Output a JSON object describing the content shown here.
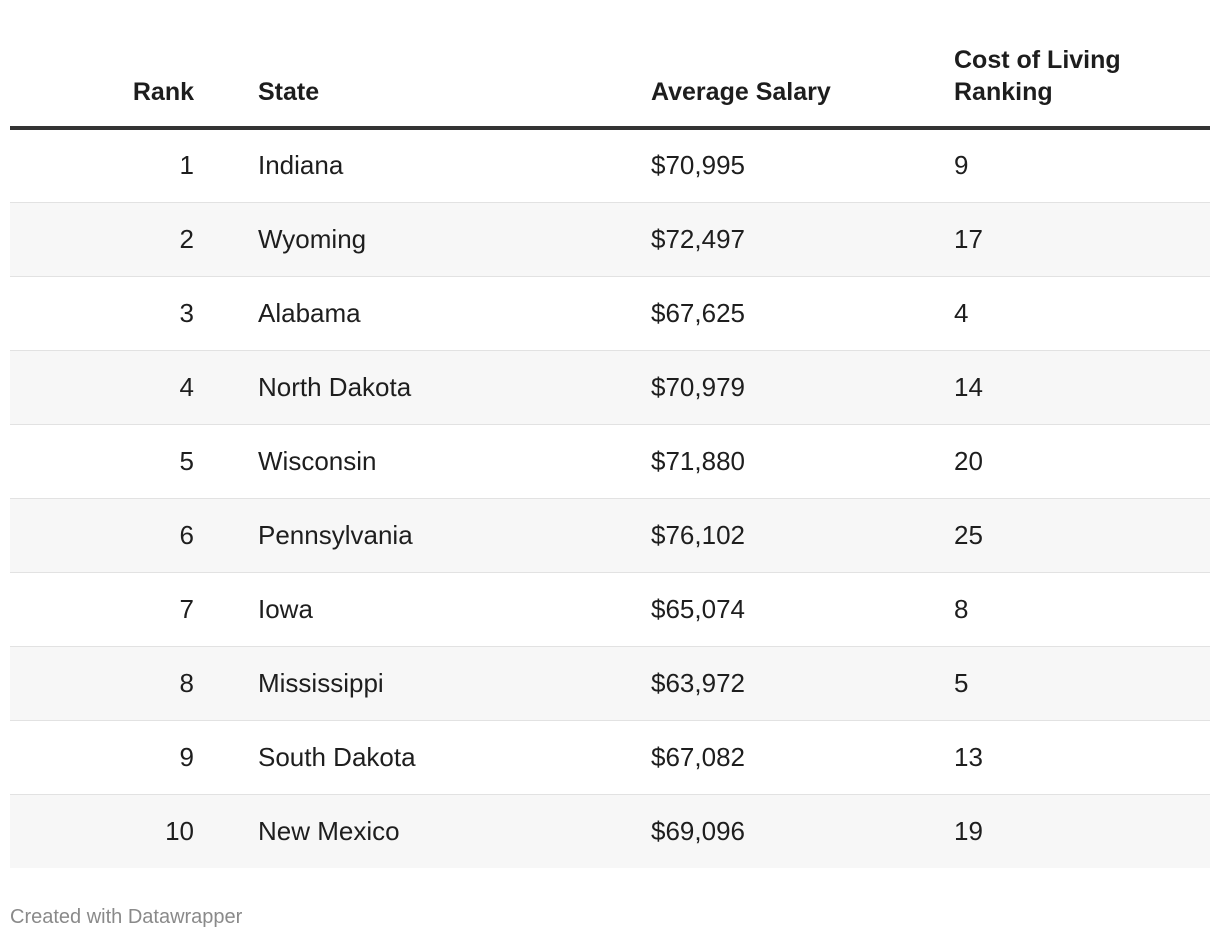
{
  "chart_data": {
    "type": "table",
    "columns": [
      "Rank",
      "State",
      "Average Salary",
      "Cost of Living Ranking"
    ],
    "rows": [
      [
        "1",
        "Indiana",
        "$70,995",
        "9"
      ],
      [
        "2",
        "Wyoming",
        "$72,497",
        "17"
      ],
      [
        "3",
        "Alabama",
        "$67,625",
        "4"
      ],
      [
        "4",
        "North Dakota",
        "$70,979",
        "14"
      ],
      [
        "5",
        "Wisconsin",
        "$71,880",
        "20"
      ],
      [
        "6",
        "Pennsylvania",
        "$76,102",
        "25"
      ],
      [
        "7",
        "Iowa",
        "$65,074",
        "8"
      ],
      [
        "8",
        "Mississippi",
        "$63,972",
        "5"
      ],
      [
        "9",
        "South Dakota",
        "$67,082",
        "13"
      ],
      [
        "10",
        "New Mexico",
        "$69,096",
        "19"
      ]
    ]
  },
  "footer": {
    "credit": "Created with Datawrapper"
  }
}
